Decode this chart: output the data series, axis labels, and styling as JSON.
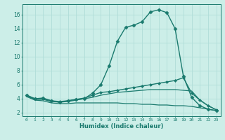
{
  "title": "",
  "xlabel": "Humidex (Indice chaleur)",
  "ylabel": "",
  "bg_color": "#cceee8",
  "grid_color": "#b0ddd8",
  "line_color": "#1a7a6e",
  "xlim": [
    -0.5,
    23.5
  ],
  "ylim": [
    1.5,
    17.5
  ],
  "yticks": [
    2,
    4,
    6,
    8,
    10,
    12,
    14,
    16
  ],
  "xticks": [
    0,
    1,
    2,
    3,
    4,
    5,
    6,
    7,
    8,
    9,
    10,
    11,
    12,
    13,
    14,
    15,
    16,
    17,
    18,
    19,
    20,
    21,
    22,
    23
  ],
  "series": [
    {
      "x": [
        0,
        1,
        2,
        3,
        4,
        5,
        6,
        7,
        8,
        9,
        10,
        11,
        12,
        13,
        14,
        15,
        16,
        17,
        18,
        19,
        20,
        21,
        22,
        23
      ],
      "y": [
        4.5,
        4.0,
        4.1,
        3.7,
        3.5,
        3.7,
        3.9,
        4.0,
        4.8,
        6.0,
        8.7,
        12.2,
        14.2,
        14.5,
        15.0,
        16.4,
        16.7,
        16.3,
        14.0,
        7.2,
        4.2,
        3.0,
        2.5,
        2.3
      ],
      "marker": "D",
      "markersize": 2.5,
      "linewidth": 1.0
    },
    {
      "x": [
        0,
        1,
        2,
        3,
        4,
        5,
        6,
        7,
        8,
        9,
        10,
        11,
        12,
        13,
        14,
        15,
        16,
        17,
        18,
        19,
        20,
        21,
        22,
        23
      ],
      "y": [
        4.5,
        4.0,
        4.0,
        3.7,
        3.6,
        3.7,
        3.9,
        4.1,
        4.5,
        4.9,
        5.0,
        5.2,
        5.4,
        5.6,
        5.8,
        6.0,
        6.2,
        6.4,
        6.6,
        7.0,
        4.8,
        3.8,
        3.0,
        2.4
      ],
      "marker": "D",
      "markersize": 2.0,
      "linewidth": 1.0
    },
    {
      "x": [
        0,
        1,
        2,
        3,
        4,
        5,
        6,
        7,
        8,
        9,
        10,
        11,
        12,
        13,
        14,
        15,
        16,
        17,
        18,
        19,
        20,
        21,
        22,
        23
      ],
      "y": [
        4.4,
        3.9,
        3.9,
        3.6,
        3.5,
        3.6,
        3.8,
        4.0,
        4.2,
        4.5,
        4.7,
        4.9,
        5.0,
        5.1,
        5.2,
        5.3,
        5.3,
        5.3,
        5.3,
        5.2,
        5.1,
        3.8,
        3.0,
        2.4
      ],
      "marker": null,
      "markersize": 0,
      "linewidth": 0.9
    },
    {
      "x": [
        0,
        1,
        2,
        3,
        4,
        5,
        6,
        7,
        8,
        9,
        10,
        11,
        12,
        13,
        14,
        15,
        16,
        17,
        18,
        19,
        20,
        21,
        22,
        23
      ],
      "y": [
        4.3,
        3.8,
        3.7,
        3.4,
        3.3,
        3.3,
        3.4,
        3.4,
        3.4,
        3.4,
        3.4,
        3.4,
        3.3,
        3.3,
        3.2,
        3.2,
        3.1,
        3.1,
        3.0,
        3.0,
        2.9,
        2.7,
        2.5,
        2.3
      ],
      "marker": null,
      "markersize": 0,
      "linewidth": 0.9
    }
  ]
}
